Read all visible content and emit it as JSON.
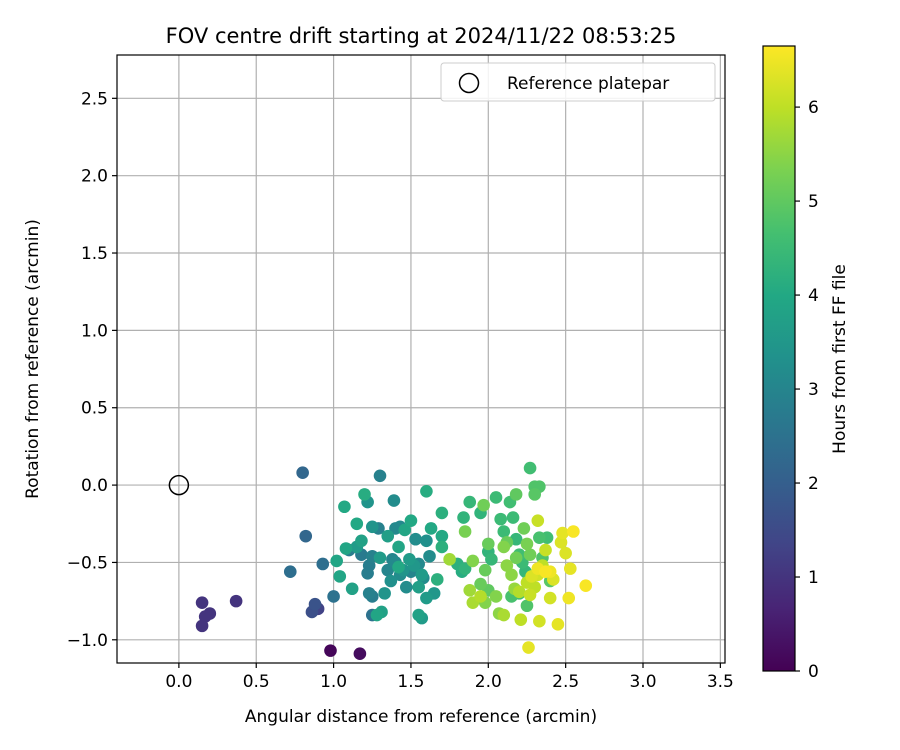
{
  "chart_data": {
    "type": "scatter",
    "title": "FOV centre drift starting at 2024/11/22 08:53:25",
    "xlabel": "Angular distance from reference (arcmin)",
    "ylabel": "Rotation from reference (arcmin)",
    "xlim": [
      -0.4,
      3.53
    ],
    "ylim": [
      -1.15,
      2.78
    ],
    "xticks": [
      "0.0",
      "0.5",
      "1.0",
      "1.5",
      "2.0",
      "2.5",
      "3.0",
      "3.5"
    ],
    "yticks": [
      "−1.0",
      "−0.5",
      "0.0",
      "0.5",
      "1.0",
      "1.5",
      "2.0",
      "2.5"
    ],
    "grid": true,
    "legend": {
      "position": "top-right",
      "entries": [
        "Reference platepar"
      ]
    },
    "reference": {
      "x": 0.0,
      "y": 0.0
    },
    "colorbar": {
      "label": "Hours from first FF file",
      "range": [
        0,
        6.65
      ],
      "ticks": [
        "0",
        "1",
        "2",
        "3",
        "4",
        "5",
        "6"
      ],
      "colormap": "viridis"
    },
    "points": [
      [
        0.98,
        -1.07,
        0.1
      ],
      [
        1.17,
        -1.09,
        0.2
      ],
      [
        0.15,
        -0.91,
        1.0
      ],
      [
        0.17,
        -0.85,
        1.0
      ],
      [
        0.2,
        -0.83,
        1.0
      ],
      [
        0.15,
        -0.76,
        1.0
      ],
      [
        0.37,
        -0.75,
        1.0
      ],
      [
        0.9,
        -0.8,
        1.3
      ],
      [
        0.86,
        -0.82,
        1.6
      ],
      [
        0.88,
        -0.77,
        1.7
      ],
      [
        0.8,
        0.08,
        2.2
      ],
      [
        0.82,
        -0.33,
        2.2
      ],
      [
        0.72,
        -0.56,
        2.4
      ],
      [
        0.93,
        -0.51,
        2.4
      ],
      [
        1.0,
        -0.72,
        2.5
      ],
      [
        1.25,
        -0.84,
        2.5
      ],
      [
        1.1,
        -0.42,
        2.8
      ],
      [
        1.18,
        -0.45,
        2.7
      ],
      [
        1.23,
        -0.52,
        2.8
      ],
      [
        1.25,
        -0.46,
        2.9
      ],
      [
        1.22,
        -0.57,
        2.8
      ],
      [
        1.23,
        -0.7,
        2.9
      ],
      [
        1.25,
        -0.72,
        2.8
      ],
      [
        1.29,
        -0.28,
        2.9
      ],
      [
        1.3,
        0.06,
        2.9
      ],
      [
        1.35,
        -0.55,
        3.0
      ],
      [
        1.38,
        -0.48,
        3.0
      ],
      [
        1.4,
        -0.5,
        3.1
      ],
      [
        1.43,
        -0.58,
        3.2
      ],
      [
        1.47,
        -0.66,
        3.2
      ],
      [
        1.5,
        -0.56,
        3.0
      ],
      [
        1.55,
        -0.51,
        3.1
      ],
      [
        1.58,
        -0.6,
        3.2
      ],
      [
        1.53,
        -0.35,
        3.2
      ],
      [
        1.6,
        -0.36,
        3.3
      ],
      [
        1.62,
        -0.46,
        3.2
      ],
      [
        1.4,
        -0.28,
        3.1
      ],
      [
        1.43,
        -0.27,
        3.1
      ],
      [
        1.25,
        -0.27,
        3.4
      ],
      [
        1.39,
        -0.1,
        3.2
      ],
      [
        1.22,
        -0.11,
        3.4
      ],
      [
        1.33,
        -0.7,
        3.4
      ],
      [
        1.37,
        -0.62,
        3.3
      ],
      [
        1.45,
        -0.55,
        3.4
      ],
      [
        1.52,
        -0.52,
        3.5
      ],
      [
        1.49,
        -0.48,
        3.6
      ],
      [
        1.55,
        -0.66,
        3.7
      ],
      [
        1.57,
        -0.58,
        3.6
      ],
      [
        1.6,
        -0.73,
        3.6
      ],
      [
        1.65,
        -0.7,
        3.5
      ],
      [
        1.57,
        -0.86,
        3.6
      ],
      [
        1.55,
        -0.84,
        3.8
      ],
      [
        1.31,
        -0.82,
        3.8
      ],
      [
        1.28,
        -0.84,
        3.9
      ],
      [
        1.12,
        -0.67,
        3.8
      ],
      [
        1.04,
        -0.59,
        3.9
      ],
      [
        1.02,
        -0.49,
        3.9
      ],
      [
        1.08,
        -0.41,
        3.9
      ],
      [
        1.15,
        -0.4,
        3.6
      ],
      [
        1.15,
        -0.25,
        4.0
      ],
      [
        1.07,
        -0.14,
        4.0
      ],
      [
        1.2,
        -0.06,
        4.1
      ],
      [
        1.18,
        -0.36,
        3.8
      ],
      [
        1.3,
        -0.47,
        3.6
      ],
      [
        1.35,
        -0.33,
        3.7
      ],
      [
        1.42,
        -0.4,
        3.9
      ],
      [
        1.42,
        -0.53,
        4.0
      ],
      [
        1.46,
        -0.29,
        3.9
      ],
      [
        1.5,
        -0.23,
        4.0
      ],
      [
        1.6,
        -0.04,
        4.1
      ],
      [
        1.63,
        -0.28,
        4.0
      ],
      [
        1.7,
        -0.18,
        4.2
      ],
      [
        1.7,
        -0.33,
        4.0
      ],
      [
        1.67,
        -0.61,
        4.2
      ],
      [
        1.7,
        -0.4,
        4.2
      ],
      [
        1.8,
        -0.51,
        4.2
      ],
      [
        1.85,
        -0.54,
        4.3
      ],
      [
        1.83,
        -0.56,
        4.1
      ],
      [
        1.84,
        -0.21,
        4.3
      ],
      [
        1.88,
        -0.11,
        4.4
      ],
      [
        1.95,
        -0.18,
        4.3
      ],
      [
        2.0,
        -0.43,
        4.3
      ],
      [
        2.02,
        -0.48,
        4.4
      ],
      [
        2.05,
        -0.08,
        4.5
      ],
      [
        2.08,
        -0.22,
        4.5
      ],
      [
        2.1,
        -0.3,
        4.5
      ],
      [
        2.14,
        -0.11,
        4.6
      ],
      [
        2.16,
        -0.21,
        4.5
      ],
      [
        2.18,
        -0.35,
        4.4
      ],
      [
        2.2,
        -0.45,
        4.6
      ],
      [
        2.22,
        -0.5,
        4.5
      ],
      [
        2.24,
        -0.56,
        4.4
      ],
      [
        2.26,
        -0.61,
        4.5
      ],
      [
        2.2,
        -0.7,
        4.6
      ],
      [
        2.15,
        -0.72,
        4.7
      ],
      [
        2.25,
        -0.78,
        4.8
      ],
      [
        2.27,
        0.11,
        4.6
      ],
      [
        2.3,
        -0.01,
        4.8
      ],
      [
        2.33,
        -0.01,
        4.8
      ],
      [
        2.3,
        -0.06,
        4.9
      ],
      [
        2.33,
        -0.34,
        4.7
      ],
      [
        2.35,
        -0.47,
        4.8
      ],
      [
        2.38,
        -0.34,
        4.6
      ],
      [
        2.4,
        -0.62,
        4.9
      ],
      [
        2.18,
        -0.06,
        5.0
      ],
      [
        2.0,
        -0.68,
        5.0
      ],
      [
        1.95,
        -0.64,
        5.1
      ],
      [
        1.98,
        -0.55,
        5.1
      ],
      [
        2.0,
        -0.38,
        5.1
      ],
      [
        1.97,
        -0.13,
        5.2
      ],
      [
        2.12,
        -0.37,
        5.1
      ],
      [
        2.18,
        -0.47,
        5.2
      ],
      [
        2.23,
        -0.28,
        5.2
      ],
      [
        2.25,
        -0.38,
        5.3
      ],
      [
        2.27,
        -0.45,
        5.2
      ],
      [
        1.85,
        -0.3,
        5.3
      ],
      [
        1.9,
        -0.49,
        5.4
      ],
      [
        1.98,
        -0.76,
        5.4
      ],
      [
        2.05,
        -0.72,
        5.4
      ],
      [
        2.07,
        -0.83,
        5.5
      ],
      [
        2.1,
        -0.4,
        5.4
      ],
      [
        2.12,
        -0.52,
        5.5
      ],
      [
        2.15,
        -0.58,
        5.5
      ],
      [
        2.17,
        -0.67,
        5.6
      ],
      [
        1.75,
        -0.48,
        5.7
      ],
      [
        1.88,
        -0.68,
        5.7
      ],
      [
        1.9,
        -0.76,
        5.8
      ],
      [
        1.95,
        -0.72,
        5.9
      ],
      [
        2.1,
        -0.84,
        5.8
      ],
      [
        2.2,
        -0.69,
        5.9
      ],
      [
        2.21,
        -0.87,
        6.0
      ],
      [
        2.25,
        -0.63,
        6.0
      ],
      [
        2.27,
        -0.71,
        6.1
      ],
      [
        2.3,
        -0.66,
        6.0
      ],
      [
        2.32,
        -0.58,
        6.2
      ],
      [
        2.35,
        -0.52,
        6.0
      ],
      [
        2.37,
        -0.42,
        6.1
      ],
      [
        2.32,
        -0.23,
        6.1
      ],
      [
        2.33,
        -0.88,
        6.2
      ],
      [
        2.4,
        -0.73,
        6.2
      ],
      [
        2.42,
        -0.61,
        6.3
      ],
      [
        2.45,
        -0.9,
        6.4
      ],
      [
        2.47,
        -0.37,
        6.3
      ],
      [
        2.48,
        -0.31,
        6.4
      ],
      [
        2.5,
        -0.44,
        6.3
      ],
      [
        2.52,
        -0.73,
        6.5
      ],
      [
        2.53,
        -0.54,
        6.4
      ],
      [
        2.55,
        -0.3,
        6.6
      ],
      [
        2.63,
        -0.65,
        6.6
      ],
      [
        2.4,
        -0.56,
        6.5
      ],
      [
        2.37,
        -0.56,
        6.6
      ],
      [
        2.32,
        -0.54,
        6.5
      ],
      [
        2.26,
        -1.05,
        6.4
      ],
      [
        2.28,
        -0.59,
        6.3
      ]
    ]
  }
}
